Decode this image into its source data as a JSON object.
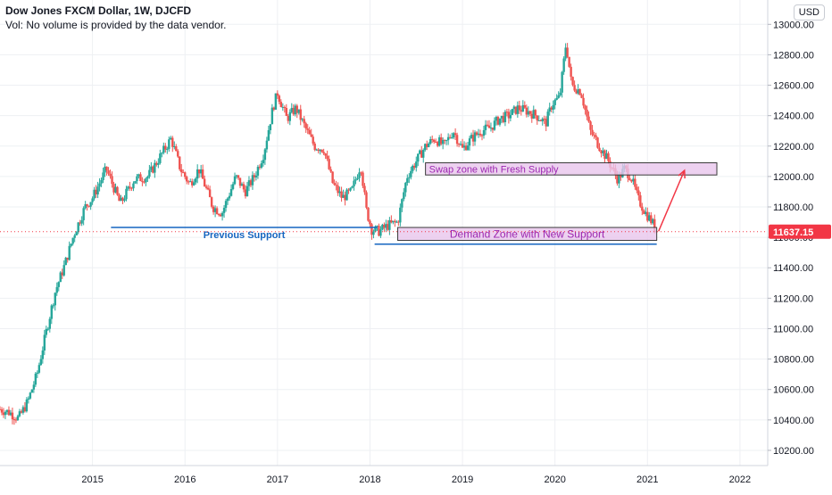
{
  "header": {
    "title": "Dow Jones FXCM Dollar, 1W, DJCFD",
    "volume_note": "Vol: No volume is provided by the data vendor."
  },
  "currency_badge": "USD",
  "last_price": {
    "value": 11637.15,
    "label": "11637.15",
    "color": "#f23645"
  },
  "colors": {
    "up": "#26a69a",
    "down": "#ef5350",
    "support_line": "#1565c0",
    "zone_fill": "#e8c6ec",
    "zone_border": "#3a3a3a",
    "zone_text": "#9c27b0",
    "arrow": "#f23645"
  },
  "chart_data": {
    "type": "candlestick",
    "y_axis": {
      "range": [
        10100,
        13160
      ],
      "ticks": [
        10200,
        10400,
        10600,
        10800,
        11000,
        11200,
        11400,
        11600,
        11800,
        12000,
        12200,
        12400,
        12600,
        12800,
        13000
      ],
      "tick_labels": [
        "10200.00",
        "10400.00",
        "10600.00",
        "10800.00",
        "11000.00",
        "11200.00",
        "11400.00",
        "11600.00",
        "11800.00",
        "12000.00",
        "12200.00",
        "12400.00",
        "12600.00",
        "12800.00",
        "13000.00"
      ]
    },
    "x_axis": {
      "range": [
        2014.0,
        2022.3
      ],
      "ticks": [
        2015,
        2016,
        2017,
        2018,
        2019,
        2020,
        2021,
        2022
      ],
      "tick_labels": [
        "2015",
        "2016",
        "2017",
        "2018",
        "2019",
        "2020",
        "2021",
        "2022"
      ]
    },
    "grid": true,
    "price_path": [
      [
        2014.0,
        10470
      ],
      [
        2014.1,
        10450
      ],
      [
        2014.2,
        10410
      ],
      [
        2014.3,
        10520
      ],
      [
        2014.4,
        10700
      ],
      [
        2014.5,
        10980
      ],
      [
        2014.6,
        11250
      ],
      [
        2014.7,
        11420
      ],
      [
        2014.8,
        11620
      ],
      [
        2014.92,
        11800
      ],
      [
        2015.0,
        11860
      ],
      [
        2015.15,
        12050
      ],
      [
        2015.3,
        11820
      ],
      [
        2015.45,
        11980
      ],
      [
        2015.6,
        12000
      ],
      [
        2015.75,
        12150
      ],
      [
        2015.85,
        12250
      ],
      [
        2015.95,
        12050
      ],
      [
        2016.05,
        11950
      ],
      [
        2016.15,
        12050
      ],
      [
        2016.3,
        11800
      ],
      [
        2016.4,
        11760
      ],
      [
        2016.55,
        12000
      ],
      [
        2016.65,
        11900
      ],
      [
        2016.75,
        12000
      ],
      [
        2016.85,
        12150
      ],
      [
        2016.95,
        12450
      ],
      [
        2017.0,
        12550
      ],
      [
        2017.1,
        12380
      ],
      [
        2017.2,
        12450
      ],
      [
        2017.3,
        12320
      ],
      [
        2017.4,
        12200
      ],
      [
        2017.5,
        12180
      ],
      [
        2017.6,
        11950
      ],
      [
        2017.7,
        11860
      ],
      [
        2017.8,
        11900
      ],
      [
        2017.9,
        12080
      ],
      [
        2017.96,
        11780
      ],
      [
        2018.02,
        11650
      ],
      [
        2018.1,
        11640
      ],
      [
        2018.2,
        11680
      ],
      [
        2018.3,
        11700
      ],
      [
        2018.4,
        12000
      ],
      [
        2018.5,
        12100
      ],
      [
        2018.6,
        12200
      ],
      [
        2018.7,
        12250
      ],
      [
        2018.8,
        12200
      ],
      [
        2018.9,
        12300
      ],
      [
        2019.0,
        12180
      ],
      [
        2019.1,
        12250
      ],
      [
        2019.2,
        12300
      ],
      [
        2019.3,
        12320
      ],
      [
        2019.4,
        12380
      ],
      [
        2019.5,
        12400
      ],
      [
        2019.6,
        12450
      ],
      [
        2019.7,
        12430
      ],
      [
        2019.8,
        12400
      ],
      [
        2019.9,
        12350
      ],
      [
        2019.97,
        12480
      ],
      [
        2020.05,
        12520
      ],
      [
        2020.12,
        12880
      ],
      [
        2020.18,
        12600
      ],
      [
        2020.28,
        12560
      ],
      [
        2020.38,
        12300
      ],
      [
        2020.48,
        12200
      ],
      [
        2020.58,
        12100
      ],
      [
        2020.68,
        11980
      ],
      [
        2020.75,
        12050
      ],
      [
        2020.82,
        12000
      ],
      [
        2020.9,
        11850
      ],
      [
        2020.98,
        11760
      ],
      [
        2021.05,
        11700
      ],
      [
        2021.1,
        11637
      ]
    ],
    "annotations": [
      {
        "type": "horizontal_line",
        "label": "Previous Support",
        "price": 11665,
        "x_start": 2015.2,
        "x_end": 2018.08
      },
      {
        "type": "rectangle",
        "label": "Swap zone with Fresh Supply",
        "price_low": 12010,
        "price_high": 12090,
        "x_start": 2018.6,
        "x_end": 2021.75
      },
      {
        "type": "rectangle",
        "label": "Demand Zone with New Support",
        "price_low": 11580,
        "price_high": 11665,
        "x_start": 2018.3,
        "x_end": 2021.1
      },
      {
        "type": "horizontal_line",
        "label": "",
        "price": 11555,
        "x_start": 2018.05,
        "x_end": 2021.1
      },
      {
        "type": "arrow",
        "label": "",
        "from": [
          2021.12,
          11640
        ],
        "to": [
          2021.4,
          12040
        ]
      }
    ]
  }
}
